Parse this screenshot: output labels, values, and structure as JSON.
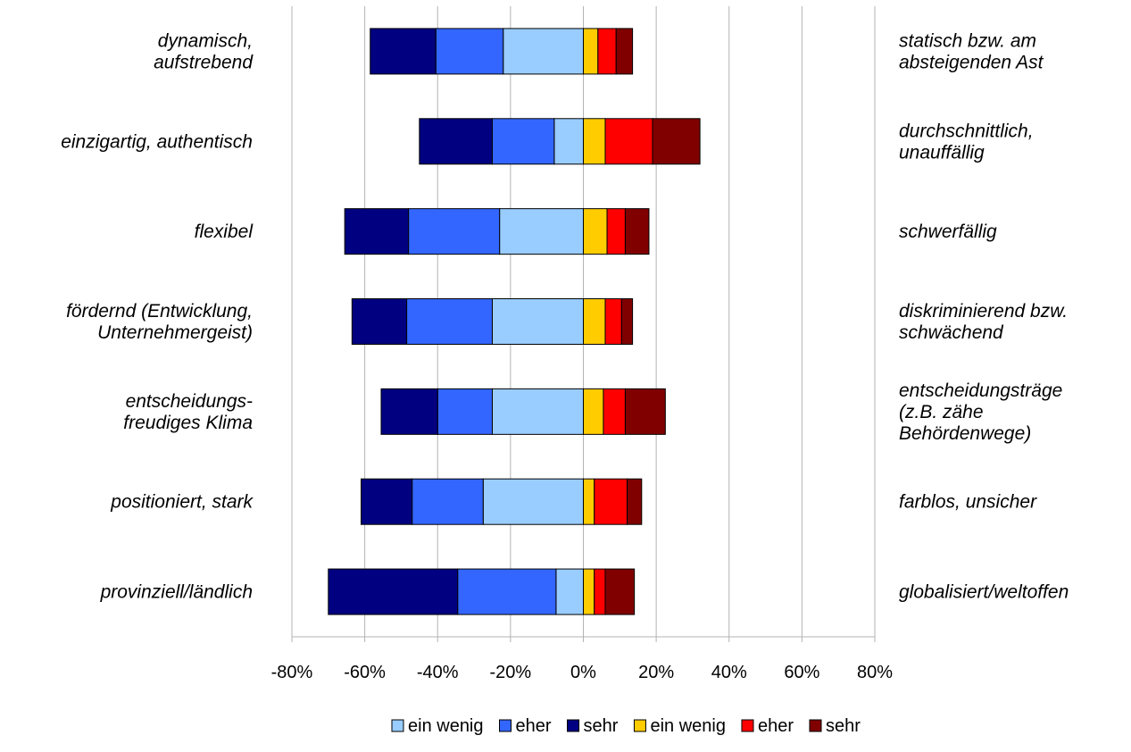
{
  "chart_data": {
    "type": "bar",
    "orientation": "horizontal",
    "stacked": "diverging",
    "left_labels": [
      [
        "dynamisch,",
        "aufstrebend"
      ],
      [
        "einzigartig, authentisch"
      ],
      [
        "flexibel"
      ],
      [
        "fördernd (Entwicklung,",
        "Unternehmergeist)"
      ],
      [
        "entscheidungs-",
        "freudiges Klima"
      ],
      [
        "positioniert, stark"
      ],
      [
        "provinziell/ländlich"
      ]
    ],
    "right_labels": [
      [
        "statisch bzw. am",
        "absteigenden Ast"
      ],
      [
        "durchschnittlich,",
        "unauffällig"
      ],
      [
        "schwerfällig"
      ],
      [
        "diskriminierend bzw.",
        "schwächend"
      ],
      [
        "entscheidungsträge",
        "(z.B. zähe",
        "Behördenwege)"
      ],
      [
        "farblos, unsicher"
      ],
      [
        "globalisiert/weltoffen"
      ]
    ],
    "x_ticks": [
      "-80%",
      "-60%",
      "-40%",
      "-20%",
      "0%",
      "20%",
      "40%",
      "60%",
      "80%"
    ],
    "xlim": [
      -80,
      80
    ],
    "grid": true,
    "legend_position": "bottom",
    "series": [
      {
        "name": "ein wenig",
        "side": "left",
        "color": "#99ccff",
        "values": [
          -22,
          -8,
          -23,
          -25,
          -25,
          -27.5,
          -7.5
        ]
      },
      {
        "name": "eher",
        "side": "left",
        "color": "#3366ff",
        "values": [
          -18.5,
          -17,
          -25,
          -23.5,
          -15,
          -19.5,
          -27
        ]
      },
      {
        "name": "sehr",
        "side": "left",
        "color": "#000080",
        "values": [
          -18,
          -20,
          -17.5,
          -15,
          -15.5,
          -14,
          -35.5
        ]
      },
      {
        "name": "ein wenig",
        "side": "right",
        "color": "#ffcc00",
        "values": [
          4,
          6,
          6.5,
          6,
          5.5,
          3,
          3
        ]
      },
      {
        "name": "eher",
        "side": "right",
        "color": "#ff0000",
        "values": [
          5,
          13,
          5,
          4.5,
          6,
          9,
          3
        ]
      },
      {
        "name": "sehr",
        "side": "right",
        "color": "#800000",
        "values": [
          4.5,
          13,
          6.5,
          3,
          11,
          4,
          8
        ]
      }
    ]
  }
}
